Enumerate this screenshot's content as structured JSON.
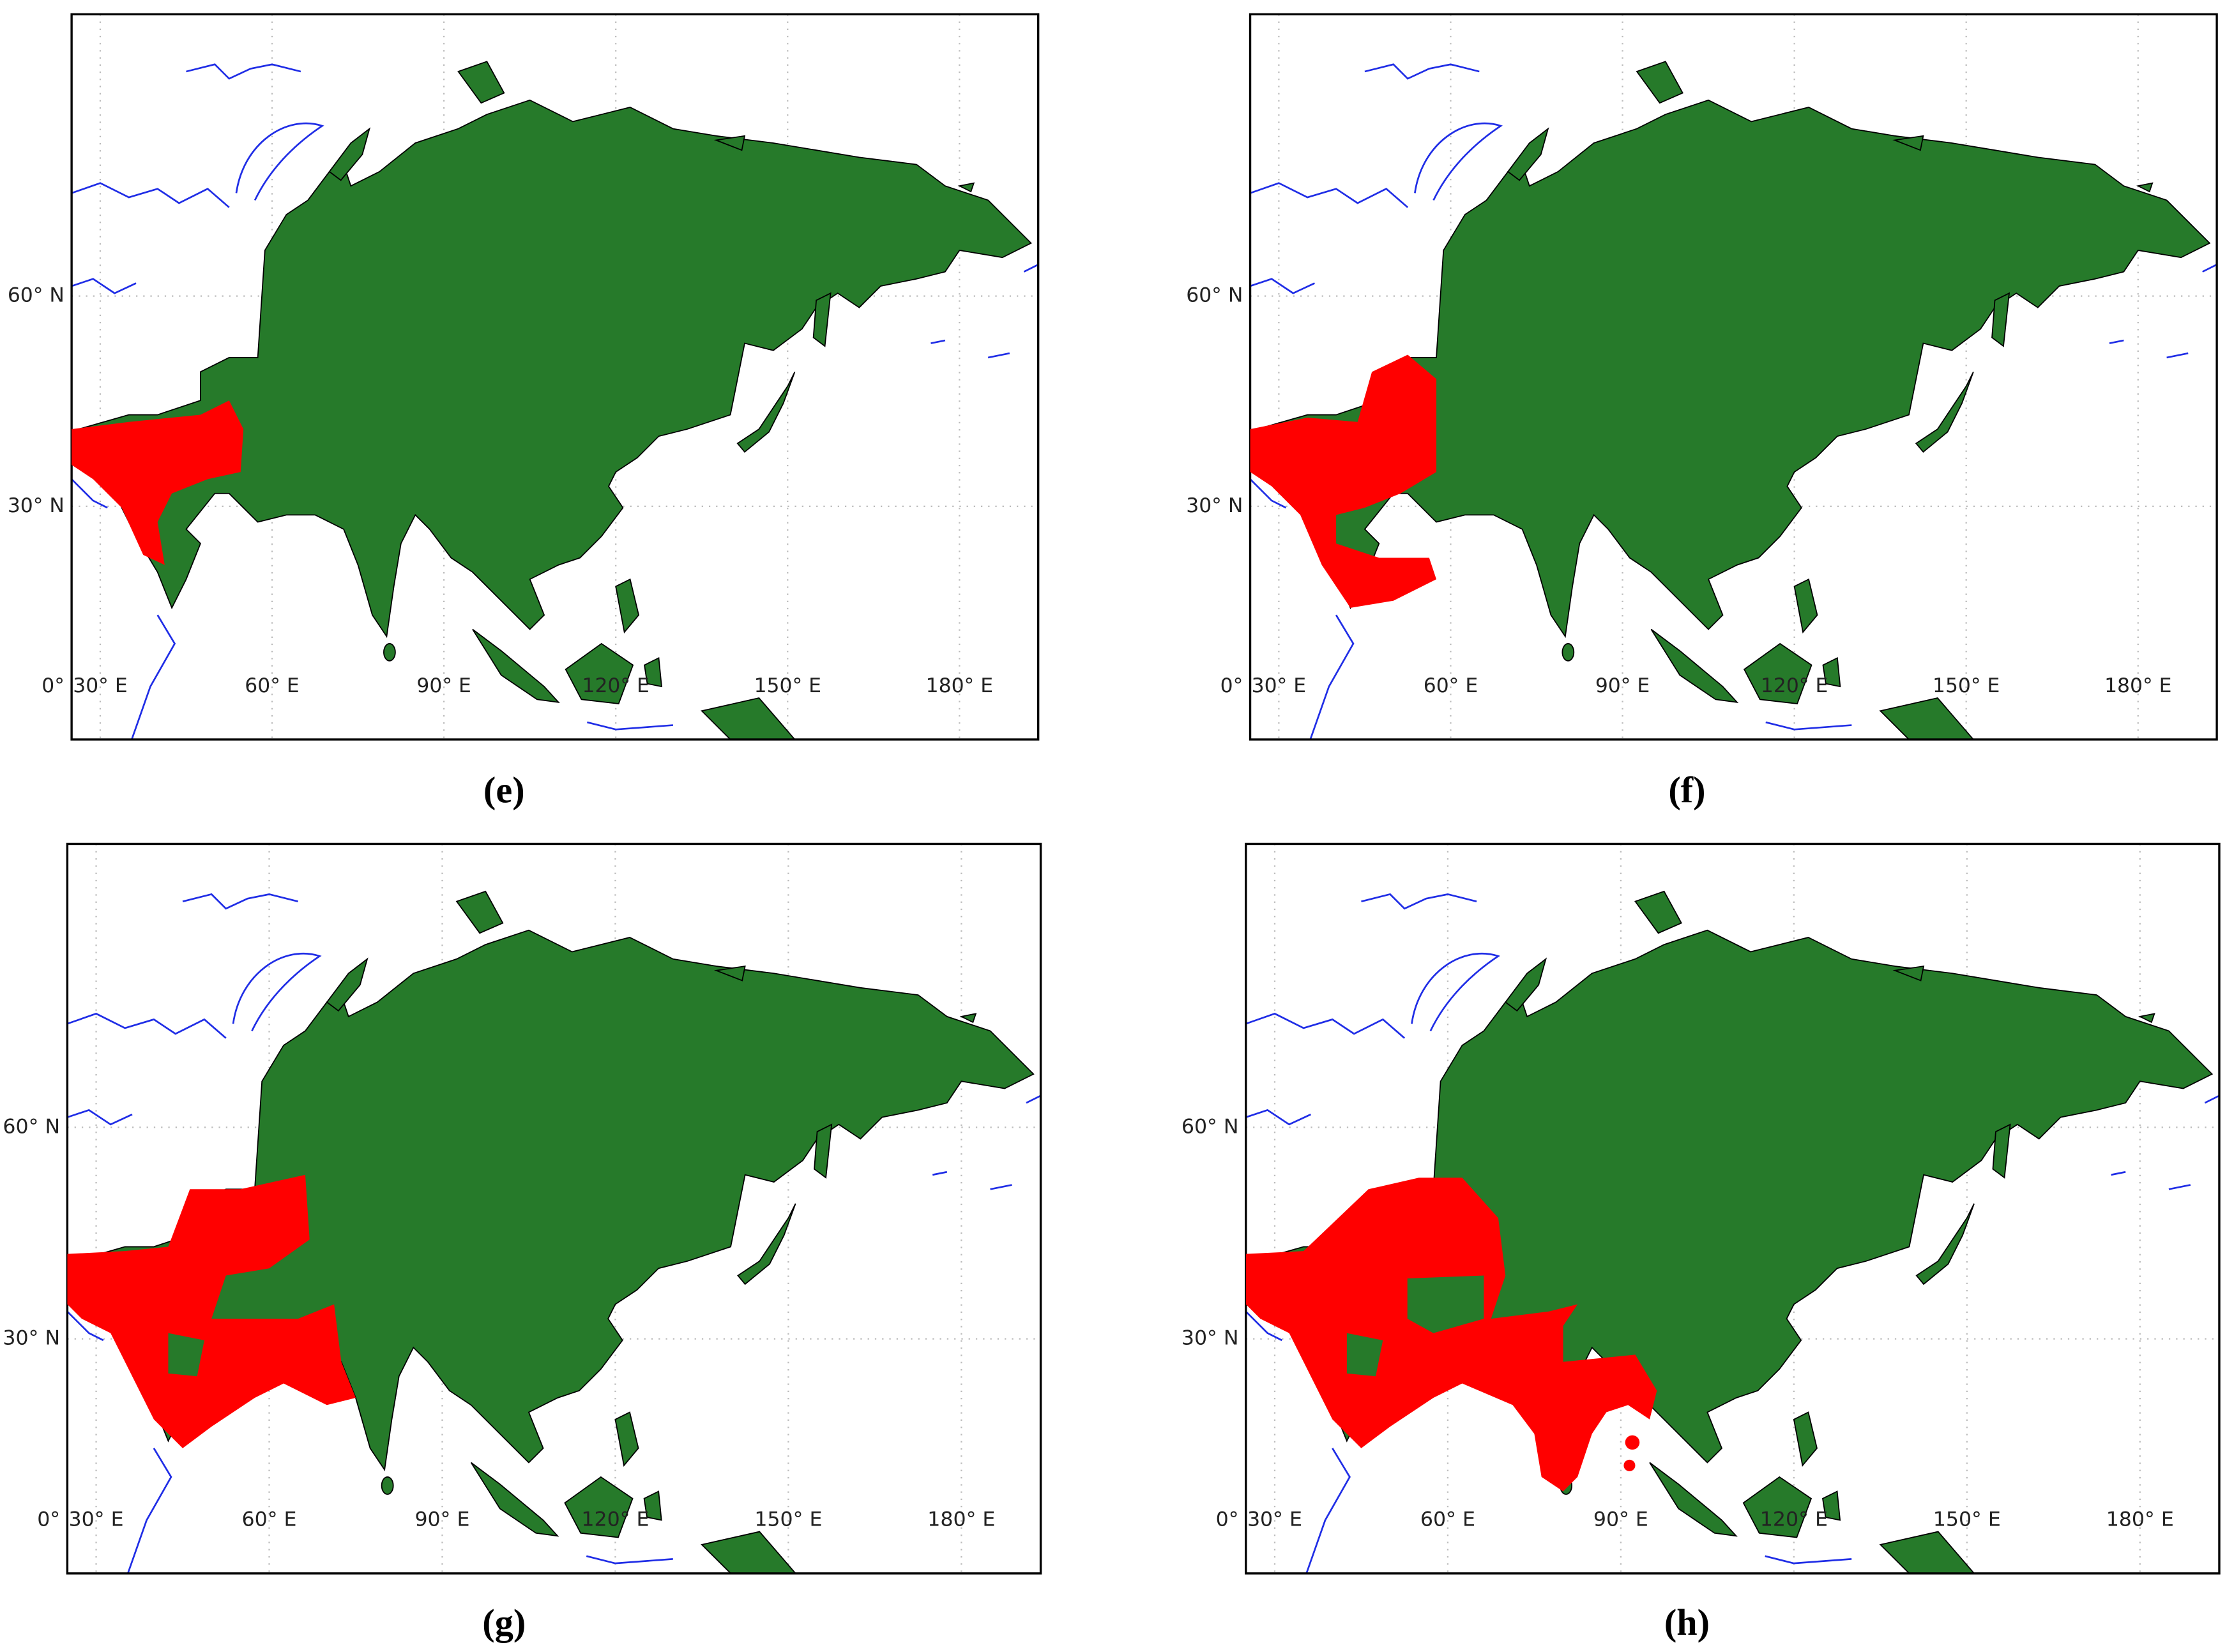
{
  "panels": [
    {
      "caption": "(e)",
      "lat_labels": [
        "60° N",
        "30° N",
        "0°"
      ],
      "lon_labels": [
        "30° E",
        "60° E",
        "90° E",
        "120° E",
        "150° E",
        "180° E"
      ]
    },
    {
      "caption": "(f)",
      "lat_labels": [
        "60° N",
        "30° N",
        "0°"
      ],
      "lon_labels": [
        "30° E",
        "60° E",
        "90° E",
        "120° E",
        "150° E",
        "180° E"
      ]
    },
    {
      "caption": "(g)",
      "lat_labels": [
        "60° N",
        "30° N",
        "0°"
      ],
      "lon_labels": [
        "30° E",
        "60° E",
        "90° E",
        "120° E",
        "150° E",
        "180° E"
      ]
    },
    {
      "caption": "(h)",
      "lat_labels": [
        "60° N",
        "30° N",
        "0°"
      ],
      "lon_labels": [
        "30° E",
        "60° E",
        "90° E",
        "120° E",
        "150° E",
        "180° E"
      ]
    }
  ]
}
